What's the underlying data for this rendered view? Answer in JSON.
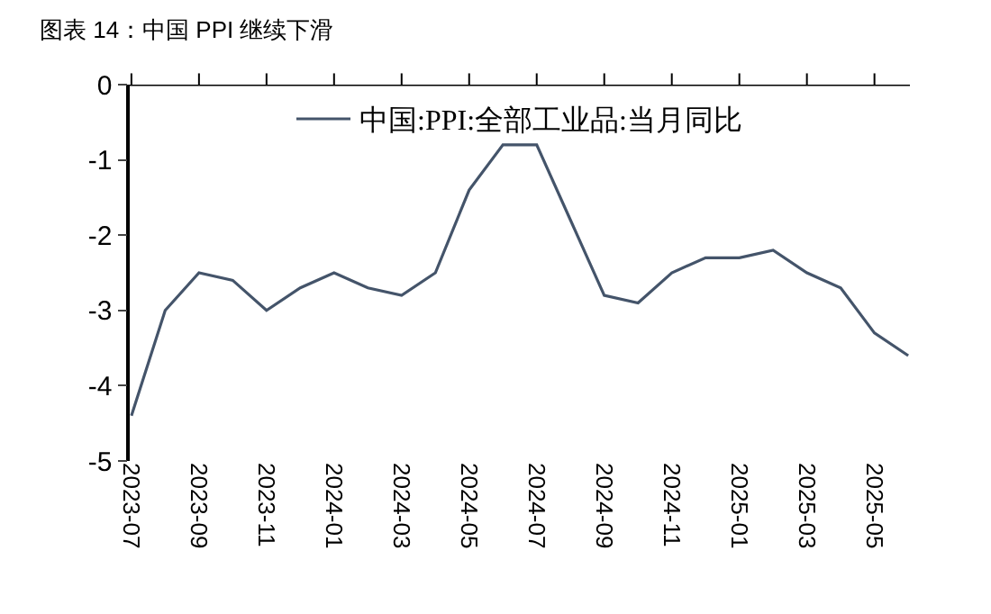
{
  "chart_data": {
    "type": "line",
    "title": "图表 14：中国 PPI 继续下滑",
    "categories": [
      "2023-07",
      null,
      "2023-09",
      null,
      "2023-11",
      null,
      "2024-01",
      null,
      "2024-03",
      null,
      "2024-05",
      null,
      "2024-07",
      null,
      "2024-09",
      null,
      "2024-11",
      null,
      "2025-01",
      null,
      "2025-03",
      null,
      "2025-05",
      null
    ],
    "series": [
      {
        "name": "中国:PPI:全部工业品:当月同比",
        "color": "#44546a",
        "values": [
          -4.4,
          -3.0,
          -2.5,
          -2.6,
          -3.0,
          -2.7,
          -2.5,
          -2.7,
          -2.8,
          -2.5,
          -1.4,
          -0.8,
          -0.8,
          -1.8,
          -2.8,
          -2.9,
          -2.5,
          -2.3,
          -2.3,
          -2.2,
          -2.5,
          -2.7,
          -3.3,
          -3.6
        ]
      }
    ],
    "ylim": [
      -5,
      0
    ],
    "yticks": [
      -5,
      -4,
      -3,
      -2,
      -1,
      0
    ],
    "legend": "top",
    "marker": "none",
    "line_style": "solid"
  }
}
